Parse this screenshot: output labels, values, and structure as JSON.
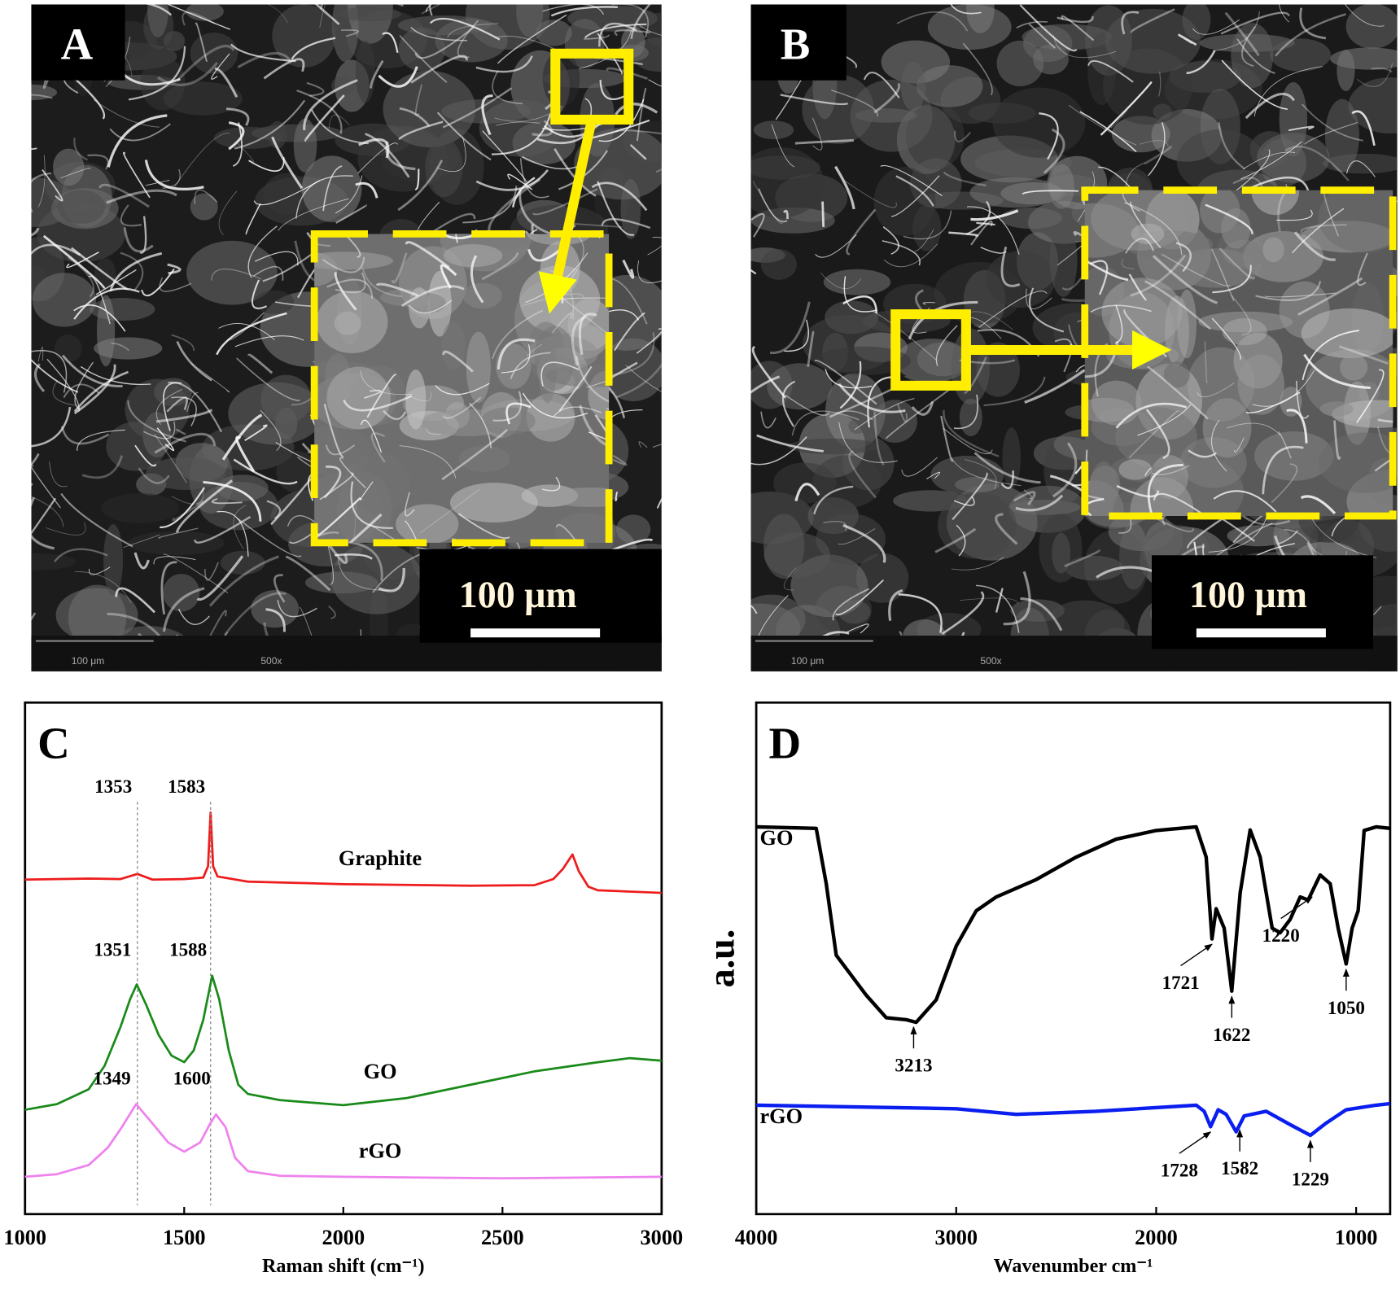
{
  "panels": [
    {
      "label": "A",
      "scale_bar": "100 μm",
      "micrograph_bar": "100 μm",
      "magnification": "500x"
    },
    {
      "label": "B",
      "scale_bar": "100 μm",
      "micrograph_bar": "100 μm",
      "magnification": "500x"
    }
  ],
  "chart_data": [
    {
      "type": "line",
      "title": "C",
      "xlabel": "Raman shift (cm⁻¹)",
      "xlim": [
        1000,
        3000
      ],
      "xticks": [
        1000,
        1500,
        2000,
        2500,
        3000
      ],
      "ylim": [
        0,
        100
      ],
      "series_label_position": "center",
      "peak_label_position": "above",
      "peak_guides": true,
      "series": [
        {
          "name": "Graphite",
          "color": "#ee1c1c",
          "peaks": [
            1353,
            1583
          ],
          "x": [
            1000,
            1200,
            1300,
            1353,
            1400,
            1500,
            1560,
            1575,
            1583,
            1591,
            1605,
            1700,
            2000,
            2400,
            2600,
            2660,
            2690,
            2720,
            2740,
            2770,
            2800,
            3000
          ],
          "values": [
            65.4,
            65.6,
            65.5,
            66.5,
            65.4,
            65.5,
            65.8,
            68,
            78.5,
            68,
            66,
            65,
            64.5,
            64.2,
            64.3,
            65.5,
            67.5,
            70.3,
            67,
            64,
            63.3,
            62.8
          ]
        },
        {
          "name": "GO",
          "color": "#1a8a1a",
          "peaks": [
            1351,
            1588
          ],
          "x": [
            1000,
            1100,
            1200,
            1250,
            1300,
            1330,
            1351,
            1380,
            1420,
            1460,
            1500,
            1530,
            1560,
            1588,
            1610,
            1640,
            1670,
            1700,
            1800,
            2000,
            2200,
            2400,
            2600,
            2800,
            2900,
            3000
          ],
          "values": [
            20.4,
            21.5,
            24.4,
            29,
            36.6,
            42,
            44.9,
            41,
            35,
            31,
            29.7,
            32,
            38,
            46.6,
            42,
            32,
            25.3,
            23.5,
            22.3,
            21.3,
            22.7,
            25.3,
            27.9,
            29.7,
            30.5,
            30
          ]
        },
        {
          "name": "rGO",
          "color": "#ee82ee",
          "peaks": [
            1349,
            1600
          ],
          "x": [
            1000,
            1100,
            1200,
            1260,
            1300,
            1349,
            1390,
            1450,
            1500,
            1550,
            1580,
            1600,
            1630,
            1660,
            1700,
            1800,
            2000,
            2500,
            3000
          ],
          "values": [
            7.3,
            7.8,
            9.6,
            13,
            16.6,
            21.5,
            18.5,
            14,
            12.2,
            14,
            17.5,
            19.5,
            17,
            11,
            8.4,
            7.5,
            7.3,
            7,
            7.3
          ]
        }
      ]
    },
    {
      "type": "line",
      "title": "D",
      "xlabel": "Wavenumber  cm⁻¹",
      "ylabel": "a.u.",
      "xlim": [
        4000,
        830
      ],
      "xticks": [
        4000,
        3000,
        2000,
        1000
      ],
      "ylim": [
        0,
        100
      ],
      "series_label_position": "left",
      "peak_label_position": "below",
      "peak_guides": false,
      "series": [
        {
          "name": "GO",
          "color": "#000000",
          "peaks": [
            3213,
            1721,
            1622,
            1220,
            1050
          ],
          "x": [
            4000,
            3700,
            3650,
            3600,
            3550,
            3450,
            3350,
            3250,
            3200,
            3100,
            3000,
            2900,
            2800,
            2600,
            2400,
            2200,
            2000,
            1800,
            1750,
            1721,
            1700,
            1660,
            1622,
            1580,
            1530,
            1480,
            1420,
            1380,
            1330,
            1280,
            1240,
            1180,
            1130,
            1090,
            1050,
            1020,
            990,
            960,
            900,
            830
          ],
          "values": [
            75.7,
            75.4,
            64.6,
            50.6,
            48,
            42.8,
            38.4,
            38,
            37.5,
            41.9,
            52.4,
            59.3,
            62,
            65.4,
            69.8,
            73.3,
            75,
            75.7,
            69.8,
            53.8,
            59.7,
            55.9,
            43.6,
            62.8,
            75.1,
            69.8,
            55.9,
            55,
            57.6,
            62,
            61.4,
            66.3,
            64.6,
            55.9,
            48.9,
            55.9,
            59.3,
            75,
            75.7,
            75.4
          ]
        },
        {
          "name": "rGO",
          "color": "#0a1ef0",
          "peaks": [
            1728,
            1582,
            1229
          ],
          "x": [
            4000,
            3000,
            2700,
            2300,
            1800,
            1760,
            1728,
            1690,
            1650,
            1600,
            1560,
            1450,
            1330,
            1229,
            1150,
            1050,
            900,
            830
          ],
          "values": [
            21.3,
            20.6,
            19.5,
            20.1,
            21.3,
            20.1,
            17.1,
            20.4,
            19.5,
            16.1,
            19.2,
            20.1,
            17.5,
            15.4,
            17.8,
            20.4,
            21.3,
            21.6
          ]
        }
      ]
    }
  ]
}
